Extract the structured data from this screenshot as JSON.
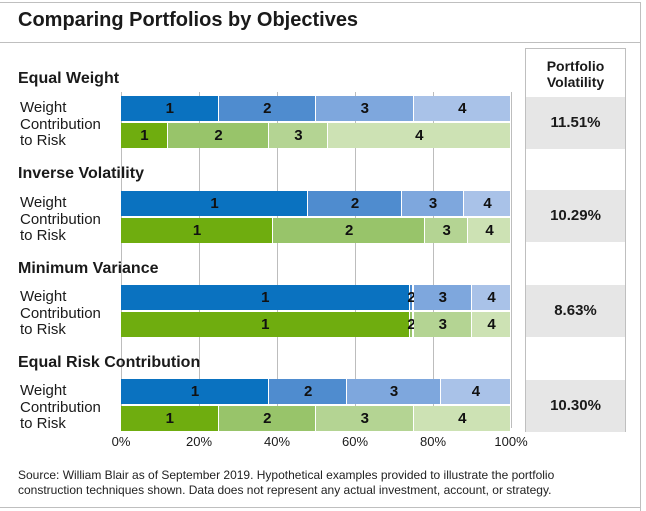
{
  "title": "Comparing Portfolios by Objectives",
  "volatility_header_line1": "Portfolio",
  "volatility_header_line2": "Volatility",
  "row_labels": {
    "weight": "Weight",
    "risk_line1": "Contribution",
    "risk_line2": "to Risk"
  },
  "source_note": "Source: William Blair as of September 2019. Hypothetical examples provided to illustrate the portfolio construction techniques shown. Data does not represent any actual investment, account, or strategy.",
  "colors": {
    "weight": [
      "#0a72c0",
      "#4f8ccf",
      "#7ea7dd",
      "#a9c2e8"
    ],
    "risk": [
      "#6fad0f",
      "#98c46a",
      "#b4d493",
      "#cde2b4"
    ]
  },
  "chart_data": {
    "type": "bar",
    "orientation": "horizontal",
    "stacked": true,
    "segment_labels": [
      "1",
      "2",
      "3",
      "4"
    ],
    "xlim": [
      0,
      100
    ],
    "x_ticks": [
      "0%",
      "20%",
      "40%",
      "60%",
      "80%",
      "100%"
    ],
    "grid": true,
    "groups": [
      {
        "name": "Equal Weight",
        "weight": [
          25,
          25,
          25,
          25
        ],
        "risk": [
          12,
          26,
          15,
          47
        ],
        "volatility": "11.51%"
      },
      {
        "name": "Inverse Volatility",
        "weight": [
          48,
          24,
          16,
          12
        ],
        "risk": [
          39,
          39,
          11,
          11
        ],
        "volatility": "10.29%"
      },
      {
        "name": "Minimum Variance",
        "weight": [
          74,
          1,
          15,
          10
        ],
        "risk": [
          74,
          1,
          15,
          10
        ],
        "volatility": "8.63%"
      },
      {
        "name": "Equal Risk Contribution",
        "weight": [
          38,
          20,
          24,
          18
        ],
        "risk": [
          25,
          25,
          25,
          25
        ],
        "volatility": "10.30%"
      }
    ]
  }
}
